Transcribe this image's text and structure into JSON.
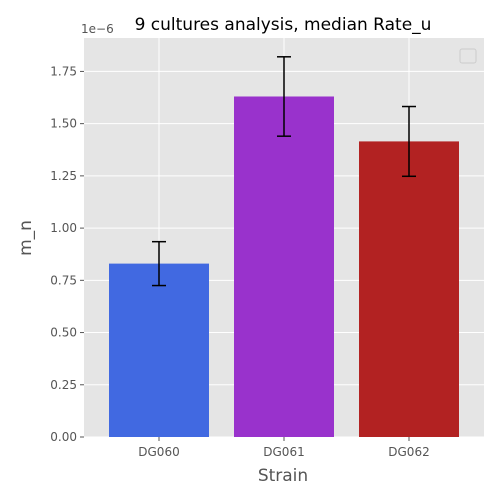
{
  "chart_data": {
    "type": "bar",
    "title": "9 cultures analysis, median Rate_u",
    "xlabel": "Strain",
    "ylabel": "m_n",
    "y_scale_label": "1e−6",
    "categories": [
      "DG060",
      "DG061",
      "DG062"
    ],
    "values": [
      0.83,
      1.63,
      1.415
    ],
    "error_low": [
      0.725,
      1.44,
      1.248
    ],
    "error_high": [
      0.935,
      1.82,
      1.582
    ],
    "bar_colors": [
      "#4169e1",
      "#9932cc",
      "#b22222"
    ],
    "ylim": [
      0,
      1.91
    ],
    "yticks": [
      0.0,
      0.25,
      0.5,
      0.75,
      1.0,
      1.25,
      1.5,
      1.75
    ],
    "ytick_labels": [
      "0.00",
      "0.25",
      "0.50",
      "0.75",
      "1.00",
      "1.25",
      "1.50",
      "1.75"
    ],
    "grid": true,
    "legend": "top-right",
    "plot_background": "#e5e5e5",
    "grid_color": "#ffffff",
    "text_color": "#555555"
  }
}
